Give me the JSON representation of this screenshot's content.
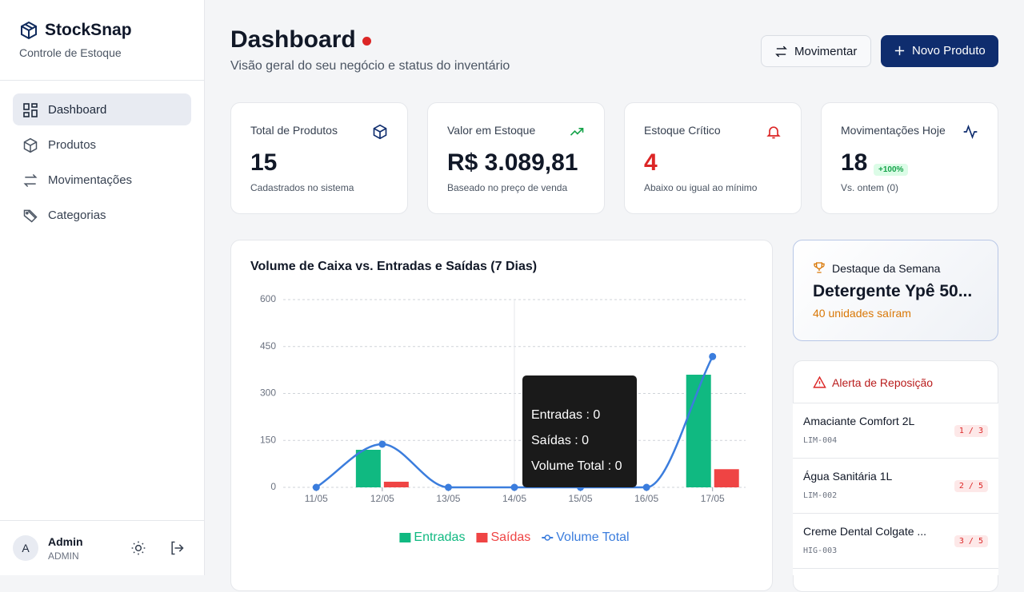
{
  "sidebar": {
    "brand": "StockSnap",
    "tagline": "Controle de Estoque",
    "nav": [
      "Dashboard",
      "Produtos",
      "Movimentações",
      "Categorias"
    ],
    "user": {
      "initial": "A",
      "name": "Admin",
      "role": "ADMIN"
    }
  },
  "header": {
    "title": "Dashboard",
    "subtitle": "Visão geral do seu negócio e status do inventário",
    "buttons": [
      "Movimentar",
      "Novo Produto"
    ]
  },
  "cards": [
    {
      "label": "Total de Produtos",
      "value": "15",
      "note": "Cadastrados no sistema"
    },
    {
      "label": "Valor em Estoque",
      "value": "R$ 3.089,81",
      "note": "Baseado no preço de venda"
    },
    {
      "label": "Estoque Crítico",
      "value": "4",
      "note": "Abaixo ou igual ao mínimo"
    },
    {
      "label": "Movimentações Hoje",
      "value": "18",
      "badge": "+100%",
      "note": "Vs. ontem (0)"
    }
  ],
  "highlight": {
    "label": "Destaque da Semana",
    "product": "Detergente Ypê 50...",
    "note": "40 unidades saíram"
  },
  "alerts": {
    "title": "Alerta de Reposição",
    "items": [
      {
        "name": "Amaciante Comfort 2L",
        "code": "LIM-004",
        "stock": "1 / 3"
      },
      {
        "name": "Água Sanitária 1L",
        "code": "LIM-002",
        "stock": "2 / 5"
      },
      {
        "name": "Creme Dental Colgate ...",
        "code": "HIG-003",
        "stock": "3 / 5"
      }
    ]
  },
  "chart_data": {
    "type": "bar",
    "title": "Volume de Caixa vs. Entradas e Saídas (7 Dias)",
    "categories": [
      "11/05",
      "12/05",
      "13/05",
      "14/05",
      "15/05",
      "16/05",
      "17/05"
    ],
    "series": [
      {
        "name": "Entradas",
        "color": "#10b981",
        "values": [
          0,
          120,
          0,
          0,
          0,
          0,
          360
        ]
      },
      {
        "name": "Saídas",
        "color": "#ef4444",
        "values": [
          0,
          18,
          0,
          0,
          0,
          0,
          58
        ]
      },
      {
        "name": "Volume Total",
        "type": "line",
        "color": "#3b7ddd",
        "values": [
          0,
          138,
          0,
          0,
          0,
          0,
          418
        ]
      }
    ],
    "ylim": [
      0,
      600
    ],
    "yticks": [
      0,
      150,
      300,
      450,
      600
    ],
    "grid": true,
    "tooltip": [
      "Entradas : 0",
      "Saídas : 0",
      "Volume Total : 0"
    ]
  }
}
